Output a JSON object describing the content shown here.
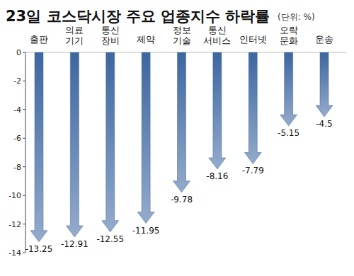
{
  "chart_data": {
    "type": "bar",
    "title": "23일 코스닥시장 주요 업종지수 하락률",
    "subtitle": "(단위: %)",
    "categories": [
      "출판",
      "의료기기",
      "통신장비",
      "제약",
      "정보기술",
      "통신서비스",
      "인터넷",
      "오락문화",
      "운송"
    ],
    "values": [
      -13.25,
      -12.91,
      -12.55,
      -11.95,
      -9.78,
      -8.16,
      -7.79,
      -5.15,
      -4.5
    ],
    "color": "#3d66a0",
    "ylim": [
      -14,
      0
    ],
    "yticks": [
      0,
      -2,
      -4,
      -6,
      -8,
      -10,
      -12,
      -14
    ],
    "grid": false,
    "data_labels": true
  }
}
